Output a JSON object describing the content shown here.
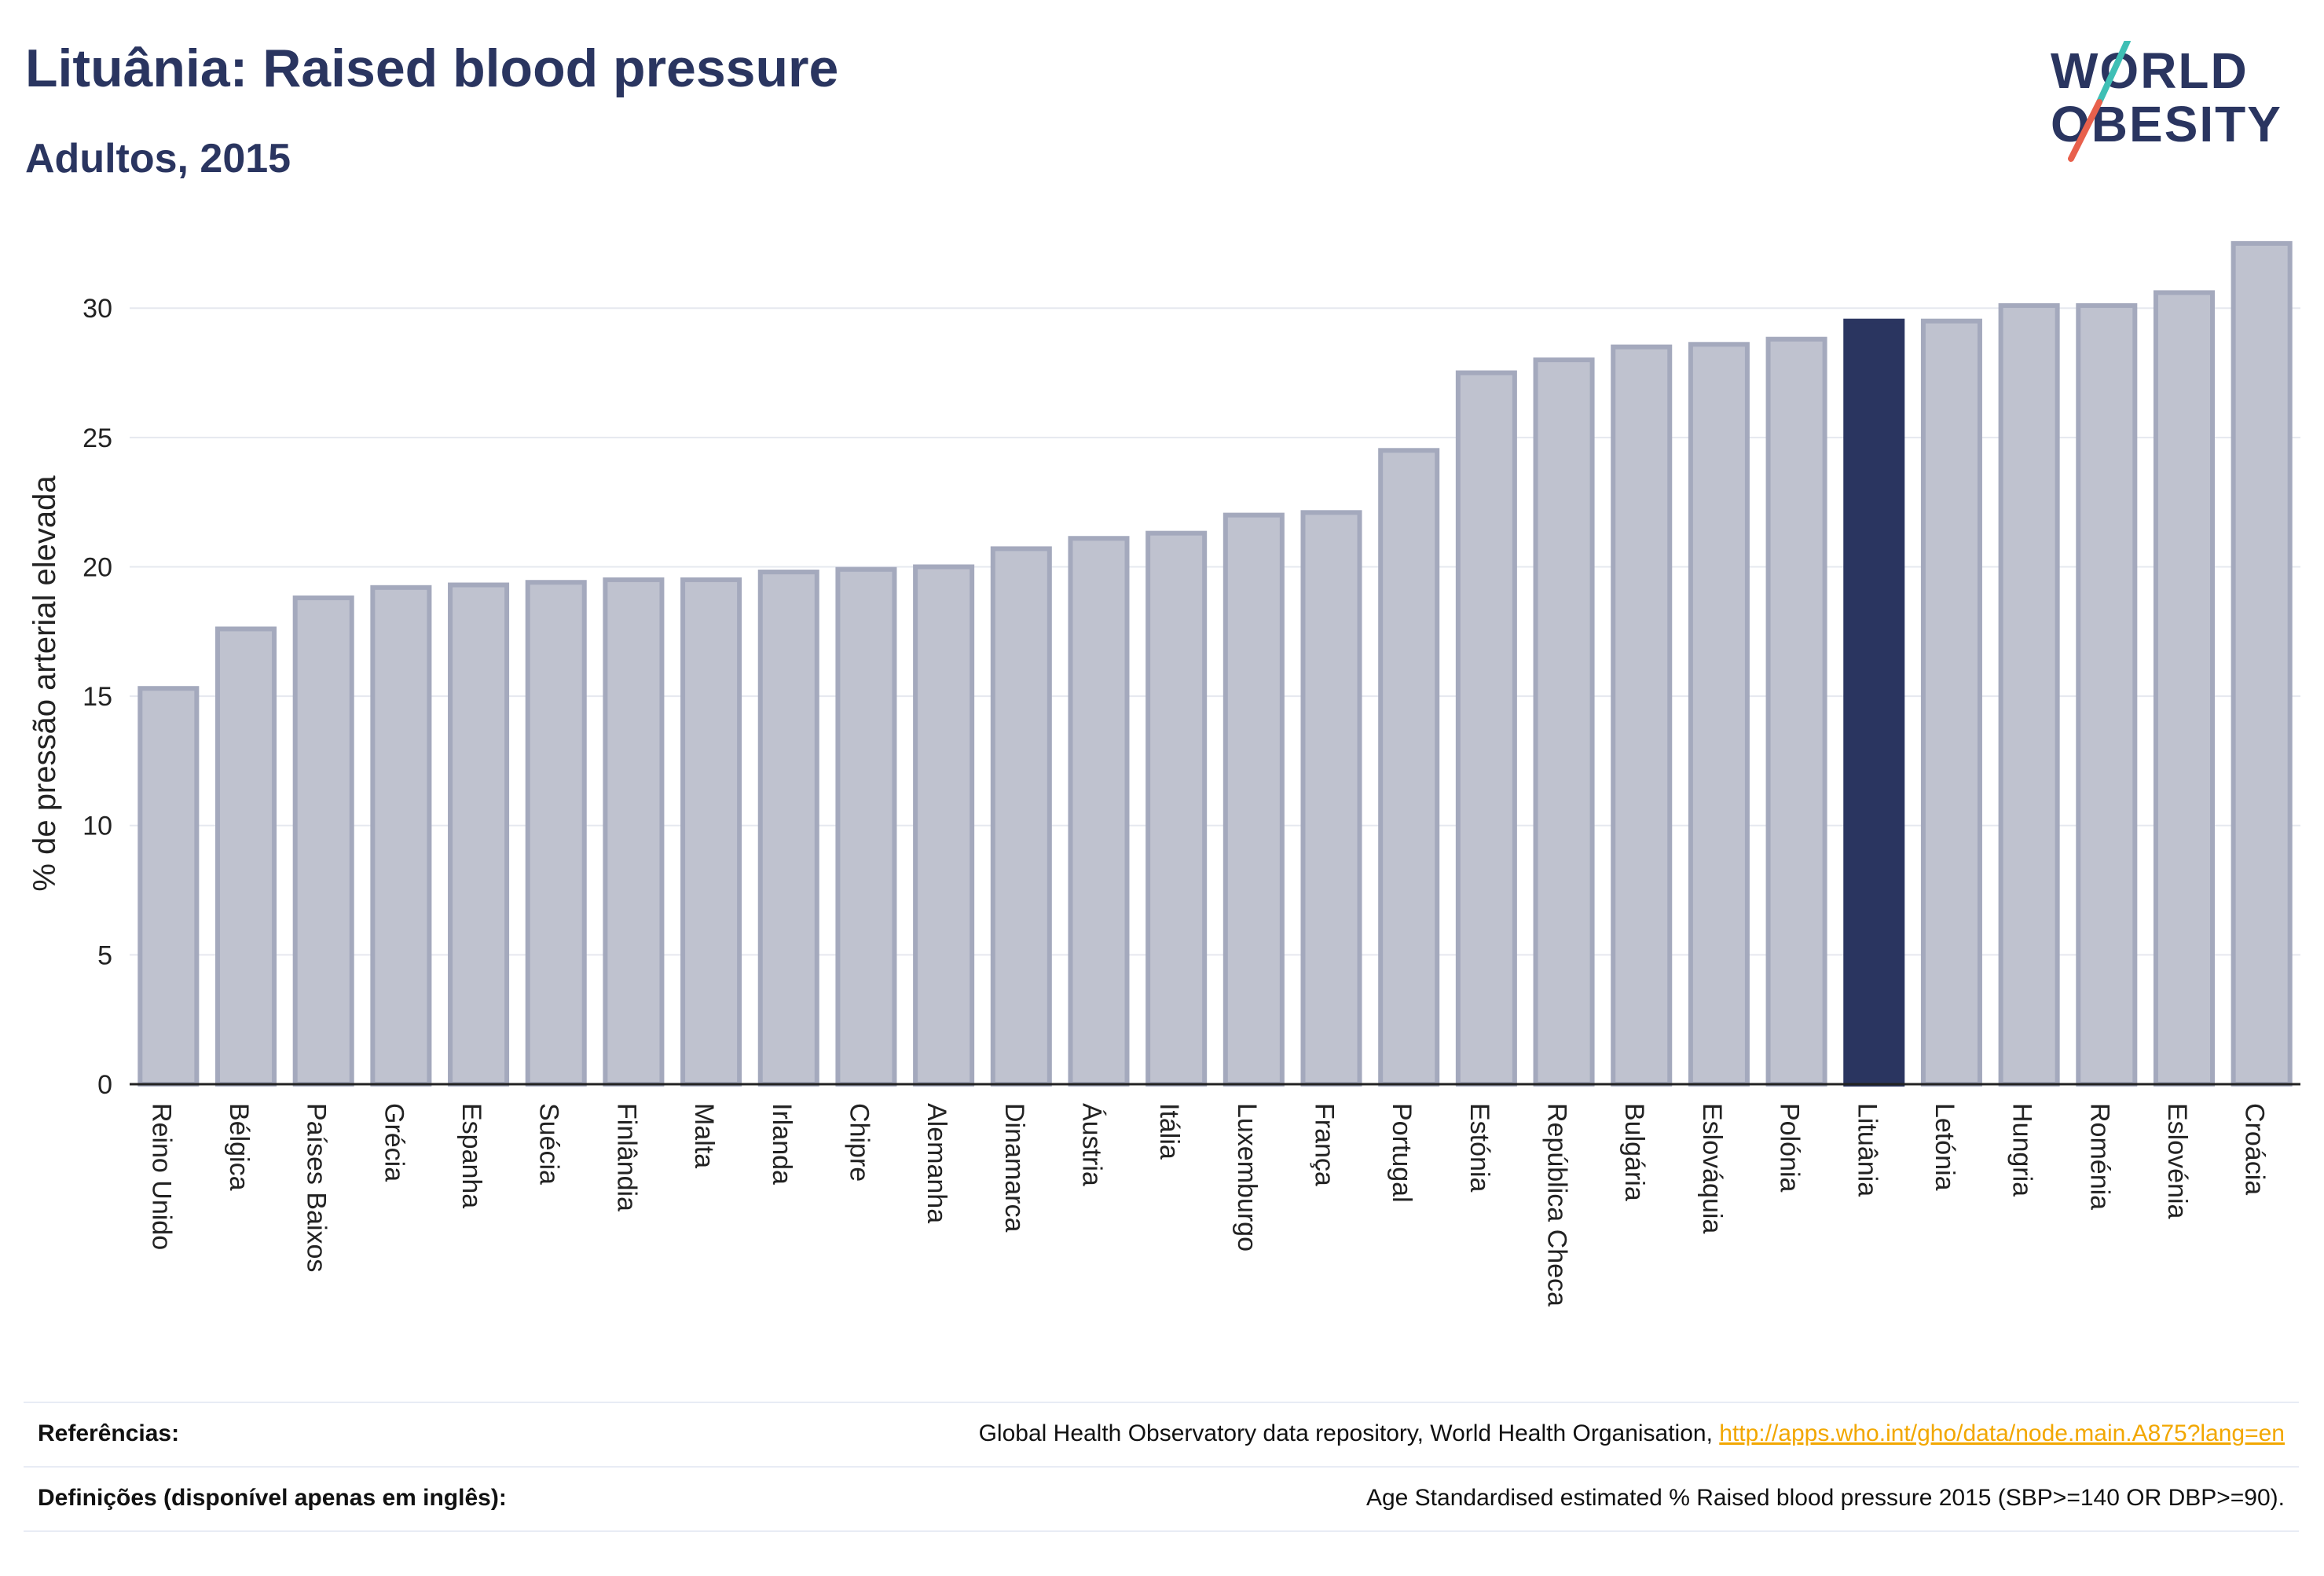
{
  "header": {
    "title": "Lituânia: Raised blood pressure",
    "subtitle": "Adultos, 2015"
  },
  "logo": {
    "line1": "WORLD",
    "line2": "OBESITY",
    "colors": {
      "text": "#2a3560",
      "slash_top": "#3fbfb5",
      "slash_bottom": "#e8604c"
    }
  },
  "colors": {
    "bar_fill": "#bfc2cf",
    "bar_stroke": "#a4a9bd",
    "highlight": "#2a3560",
    "grid": "#e6e8ef",
    "axis": "#222222"
  },
  "chart_data": {
    "type": "bar",
    "title": "Lituânia: Raised blood pressure",
    "subtitle": "Adultos, 2015",
    "xlabel": "",
    "ylabel": "% de pressão arterial elevada",
    "ylim": [
      0,
      32.8
    ],
    "yticks": [
      0,
      5,
      10,
      15,
      20,
      25,
      30
    ],
    "grid": true,
    "legend": "none",
    "highlight": "Lituânia",
    "categories": [
      "Reino Unido",
      "Bélgica",
      "Países Baixos",
      "Grécia",
      "Espanha",
      "Suécia",
      "Finlândia",
      "Malta",
      "Irlanda",
      "Chipre",
      "Alemanha",
      "Dinamarca",
      "Áustria",
      "Itália",
      "Luxemburgo",
      "França",
      "Portugal",
      "Estónia",
      "República Checa",
      "Bulgária",
      "Eslováquia",
      "Polónia",
      "Lituânia",
      "Letónia",
      "Hungria",
      "Roménia",
      "Eslovénia",
      "Croácia"
    ],
    "values": [
      15.3,
      17.6,
      18.8,
      19.2,
      19.3,
      19.4,
      19.5,
      19.5,
      19.8,
      19.9,
      20.0,
      20.7,
      21.1,
      21.3,
      22.0,
      22.1,
      24.5,
      27.5,
      28.0,
      28.5,
      28.6,
      28.8,
      29.5,
      29.5,
      30.1,
      30.1,
      30.6,
      32.5
    ]
  },
  "references": {
    "label": "Referências:",
    "text": "Global Health Observatory data repository, World Health Organisation, ",
    "link": "http://apps.who.int/gho/data/node.main.A875?lang=en"
  },
  "definitions": {
    "label": "Definições (disponível apenas em inglês):",
    "text": "Age Standardised estimated % Raised blood pressure 2015 (SBP>=140 OR DBP>=90)."
  }
}
